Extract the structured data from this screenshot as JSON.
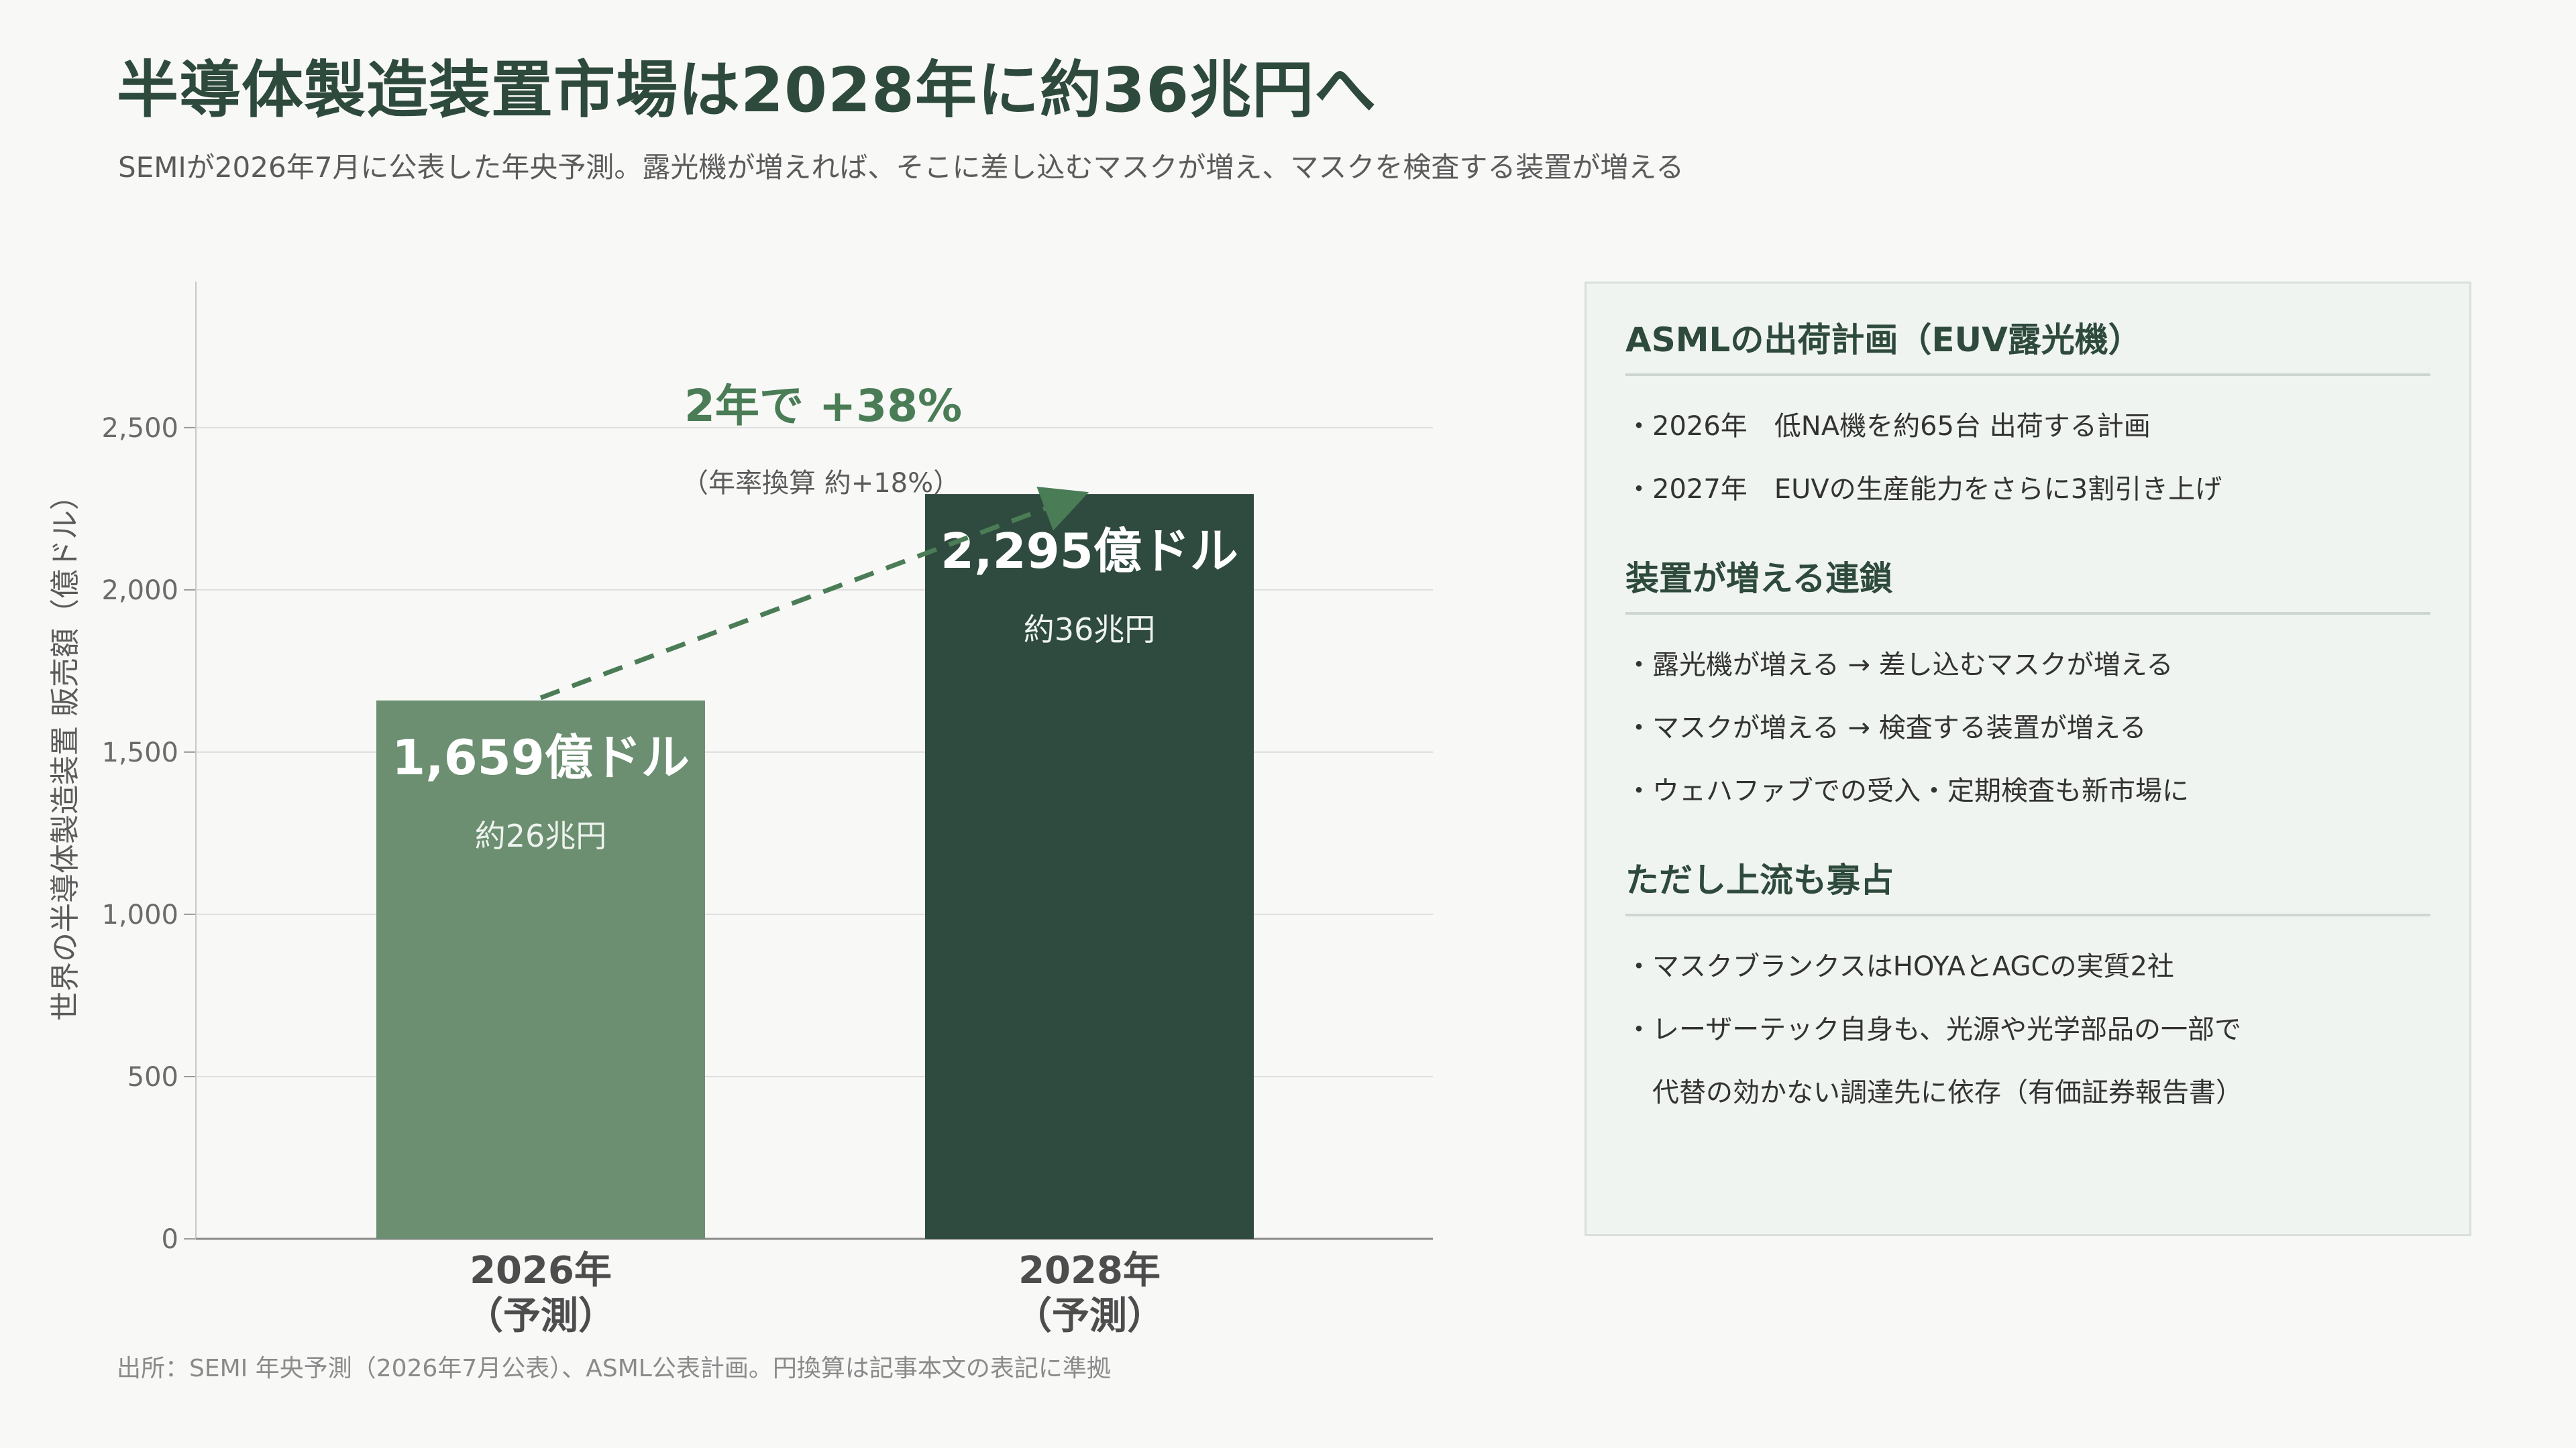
{
  "header": {
    "title": "半導体製造装置市場は2028年に約36兆円へ",
    "subtitle": "SEMIが2026年7月に公表した年央予測。露光機が増えれば、そこに差し込むマスクが増え、マスクを検査する装置が増える"
  },
  "chart_data": {
    "type": "bar",
    "title": "",
    "ylabel": "世界の半導体製造装置 販売額（億ドル）",
    "xlabel": "",
    "categories": [
      "2026年\n（予測）",
      "2028年\n（予測）"
    ],
    "values": [
      1659,
      2295
    ],
    "value_labels": [
      "1,659億ドル",
      "2,295億ドル"
    ],
    "value_sublabels": [
      "約26兆円",
      "約36兆円"
    ],
    "bar_colors": [
      "#6b8f70",
      "#2f4a3f"
    ],
    "ylim": [
      0,
      2950
    ],
    "yticks": [
      0,
      500,
      1000,
      1500,
      2000,
      2500
    ],
    "ytick_labels": [
      "0",
      "500",
      "1,000",
      "1,500",
      "2,000",
      "2,500"
    ],
    "grid": true,
    "annotation": {
      "main": "2年で +38%",
      "sub": "（年率換算 約+18%）",
      "color": "#4a7c56"
    }
  },
  "side_panel": {
    "sections": [
      {
        "heading": "ASMLの出荷計画（EUV露光機）",
        "items": [
          "・2026年　低NA機を約65台 出荷する計画",
          "・2027年　EUVの生産能力をさらに3割引き上げ"
        ]
      },
      {
        "heading": "装置が増える連鎖",
        "items": [
          "・露光機が増える → 差し込むマスクが増える",
          "・マスクが増える → 検査する装置が増える",
          "・ウェハファブでの受入・定期検査も新市場に"
        ]
      },
      {
        "heading": "ただし上流も寡占",
        "items": [
          "・マスクブランクスはHOYAとAGCの実質2社",
          "・レーザーテック自身も、光源や光学部品の一部で",
          "　代替の効かない調達先に依存（有価証券報告書）"
        ]
      }
    ]
  },
  "footer": {
    "source": "出所：SEMI 年央予測（2026年7月公表）、ASML公表計画。円換算は記事本文の表記に準拠"
  }
}
